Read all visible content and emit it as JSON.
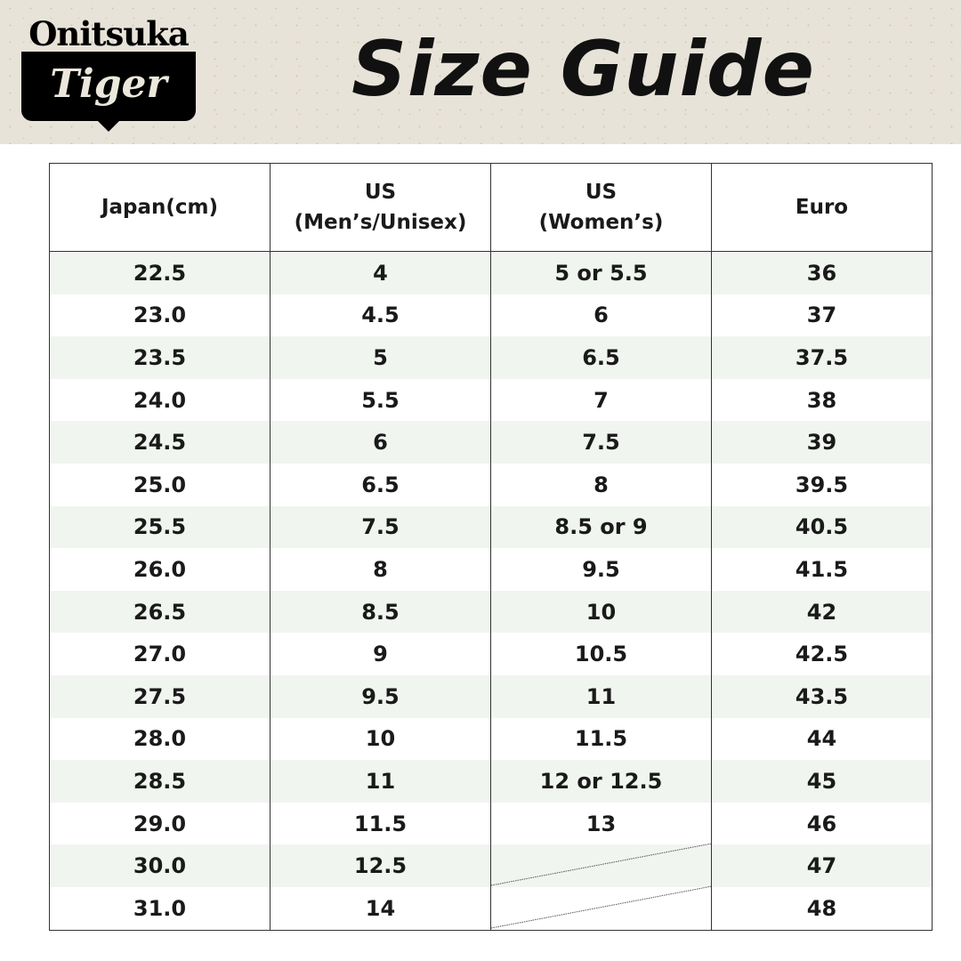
{
  "brand": {
    "line1": "Onitsuka",
    "line2": "Tiger"
  },
  "title": "Size Guide",
  "table": {
    "headers": [
      [
        "Japan(cm)",
        ""
      ],
      [
        "US",
        "(Men’s/Unisex)"
      ],
      [
        "US",
        "(Women’s)"
      ],
      [
        "Euro",
        ""
      ]
    ],
    "rows": [
      [
        "22.5",
        "4",
        "5 or 5.5",
        "36"
      ],
      [
        "23.0",
        "4.5",
        "6",
        "37"
      ],
      [
        "23.5",
        "5",
        "6.5",
        "37.5"
      ],
      [
        "24.0",
        "5.5",
        "7",
        "38"
      ],
      [
        "24.5",
        "6",
        "7.5",
        "39"
      ],
      [
        "25.0",
        "6.5",
        "8",
        "39.5"
      ],
      [
        "25.5",
        "7.5",
        "8.5 or 9",
        "40.5"
      ],
      [
        "26.0",
        "8",
        "9.5",
        "41.5"
      ],
      [
        "26.5",
        "8.5",
        "10",
        "42"
      ],
      [
        "27.0",
        "9",
        "10.5",
        "42.5"
      ],
      [
        "27.5",
        "9.5",
        "11",
        "43.5"
      ],
      [
        "28.0",
        "10",
        "11.5",
        "44"
      ],
      [
        "28.5",
        "11",
        "12 or 12.5",
        "45"
      ],
      [
        "29.0",
        "11.5",
        "13",
        "46"
      ],
      [
        "30.0",
        "12.5",
        "",
        "47"
      ],
      [
        "31.0",
        "14",
        "",
        "48"
      ]
    ]
  },
  "colors": {
    "banner": "#e8e3d8",
    "row_alt": "#f0f5ef"
  }
}
